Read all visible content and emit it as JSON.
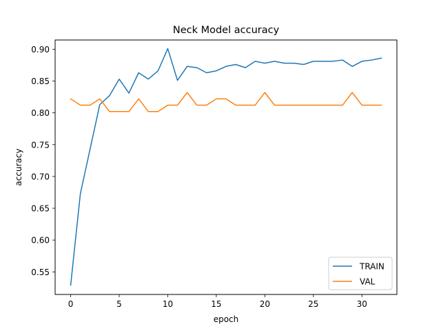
{
  "chart_data": {
    "type": "line",
    "title": "Neck Model accuracy",
    "xlabel": "epoch",
    "ylabel": "accuracy",
    "xlim": [
      -1.6,
      33.6
    ],
    "ylim": [
      0.5145,
      0.9145
    ],
    "xticks": [
      0,
      5,
      10,
      15,
      20,
      25,
      30
    ],
    "yticks": [
      0.55,
      0.6,
      0.65,
      0.7,
      0.75,
      0.8,
      0.85,
      0.9
    ],
    "xtick_labels": [
      "0",
      "5",
      "10",
      "15",
      "20",
      "25",
      "30"
    ],
    "ytick_labels": [
      "0.55",
      "0.60",
      "0.65",
      "0.70",
      "0.75",
      "0.80",
      "0.85",
      "0.90"
    ],
    "grid": false,
    "legend_position": "bottom-right",
    "x": [
      0,
      1,
      2,
      3,
      4,
      5,
      6,
      7,
      8,
      9,
      10,
      11,
      12,
      13,
      14,
      15,
      16,
      17,
      18,
      19,
      20,
      21,
      22,
      23,
      24,
      25,
      26,
      27,
      28,
      29,
      30,
      31,
      32
    ],
    "series": [
      {
        "name": "TRAIN",
        "color": "#1f77b4",
        "values": [
          0.529,
          0.673,
          0.743,
          0.813,
          0.827,
          0.853,
          0.831,
          0.863,
          0.853,
          0.866,
          0.901,
          0.851,
          0.873,
          0.871,
          0.863,
          0.866,
          0.873,
          0.876,
          0.871,
          0.881,
          0.878,
          0.881,
          0.878,
          0.878,
          0.876,
          0.881,
          0.881,
          0.881,
          0.883,
          0.873,
          0.881,
          0.883,
          0.886
        ]
      },
      {
        "name": "VAL",
        "color": "#ff7f0e",
        "values": [
          0.822,
          0.812,
          0.812,
          0.822,
          0.802,
          0.802,
          0.802,
          0.822,
          0.802,
          0.802,
          0.812,
          0.812,
          0.832,
          0.812,
          0.812,
          0.822,
          0.822,
          0.812,
          0.812,
          0.812,
          0.832,
          0.812,
          0.812,
          0.812,
          0.812,
          0.812,
          0.812,
          0.812,
          0.812,
          0.832,
          0.812,
          0.812,
          0.812
        ]
      }
    ]
  }
}
